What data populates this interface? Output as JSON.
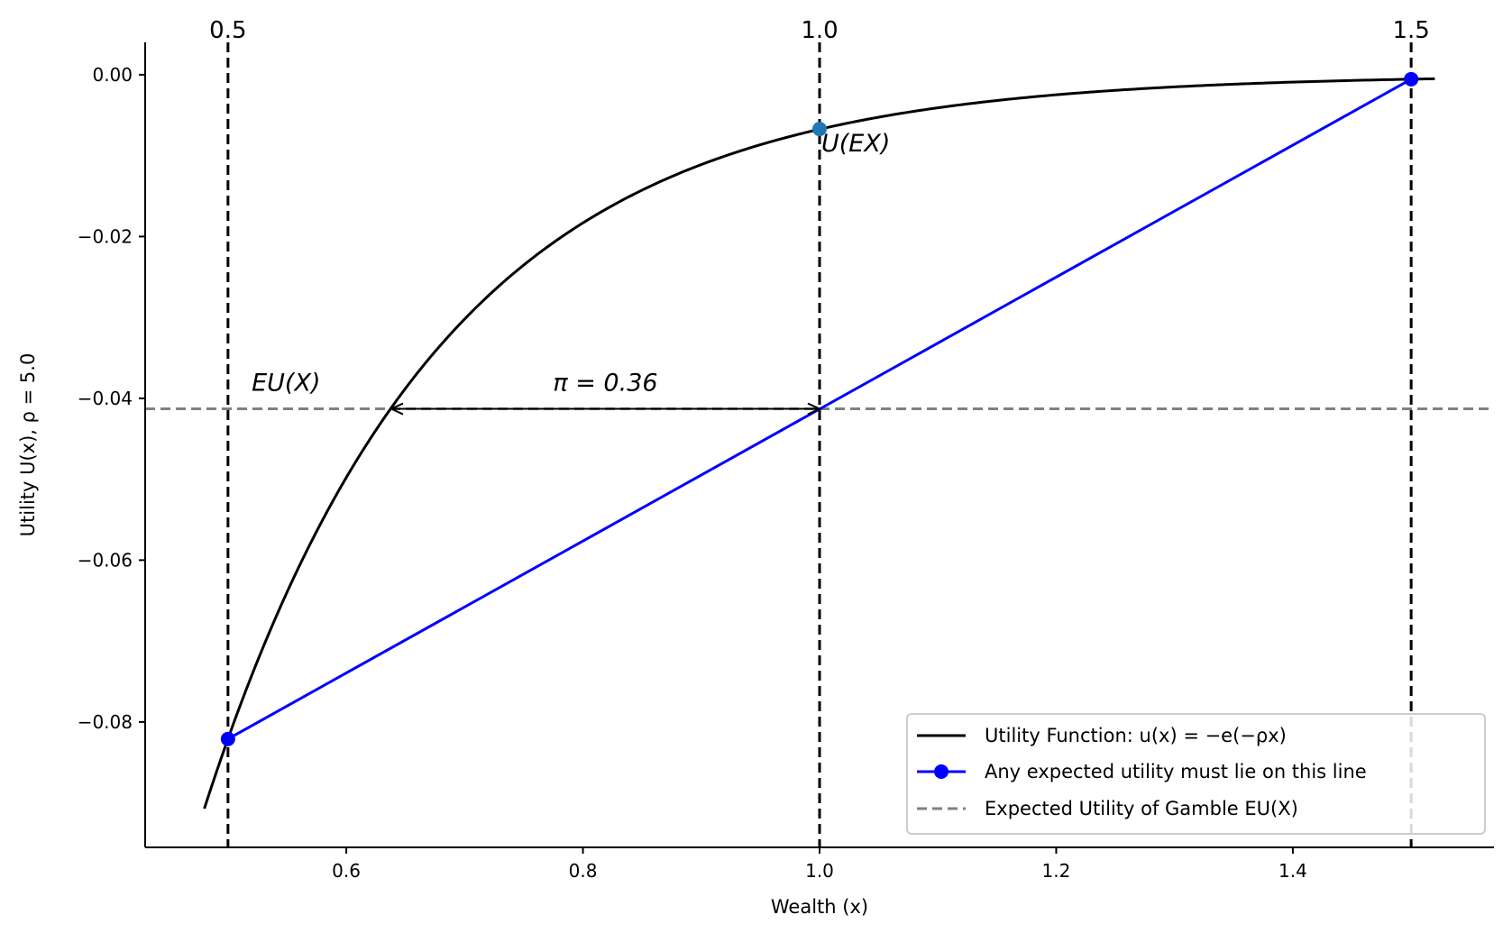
{
  "chart_data": {
    "type": "line",
    "title": "",
    "xlabel": "Wealth (x)",
    "ylabel": "Utility U(x), ρ = 5.0",
    "xlim": [
      0.43,
      1.57
    ],
    "ylim": [
      -0.0955,
      0.004
    ],
    "x_ticks": [
      "0.6",
      "0.8",
      "1.0",
      "1.2",
      "1.4"
    ],
    "x_tick_values": [
      0.6,
      0.8,
      1.0,
      1.2,
      1.4
    ],
    "y_ticks": [
      "0.00",
      "−0.02",
      "−0.04",
      "−0.06",
      "−0.08"
    ],
    "y_tick_values": [
      0.0,
      -0.02,
      -0.04,
      -0.06,
      -0.08
    ],
    "top_ticks": [
      "0.5",
      "1.0",
      "1.5"
    ],
    "top_tick_values": [
      0.5,
      1.0,
      1.5
    ],
    "rho": 5.0,
    "series": [
      {
        "name": "Utility Function: u(x) = −e(−ρx)",
        "color": "#000000",
        "style": "solid",
        "x_range": [
          0.48,
          1.52
        ],
        "function": "-exp(-5x)"
      },
      {
        "name": "Any expected utility must lie on this line",
        "color": "#0000ff",
        "style": "solid-with-markers",
        "x": [
          0.5,
          1.5
        ],
        "y": [
          -0.0821,
          -0.00055
        ]
      },
      {
        "name": "Expected Utility of Gamble EU(X)",
        "color": "#808080",
        "style": "dashed",
        "y": -0.0413
      }
    ],
    "vertical_lines": [
      0.5,
      1.0,
      1.5
    ],
    "points": [
      {
        "name": "U(EX)",
        "x": 1.0,
        "y": -0.0067,
        "color": "#1f77b4"
      }
    ],
    "annotations": {
      "eu_label": "EU(X)",
      "uex_label": "U(EX)",
      "pi_label": "π = 0.36",
      "pi_arrow_from": 0.638,
      "pi_arrow_to": 1.0
    },
    "legend": {
      "position": "bottom-right",
      "entries": [
        "Utility Function: u(x) = −e(−ρx)",
        "Any expected utility must lie on this line",
        "Expected Utility of Gamble EU(X)"
      ]
    },
    "grid": false
  }
}
